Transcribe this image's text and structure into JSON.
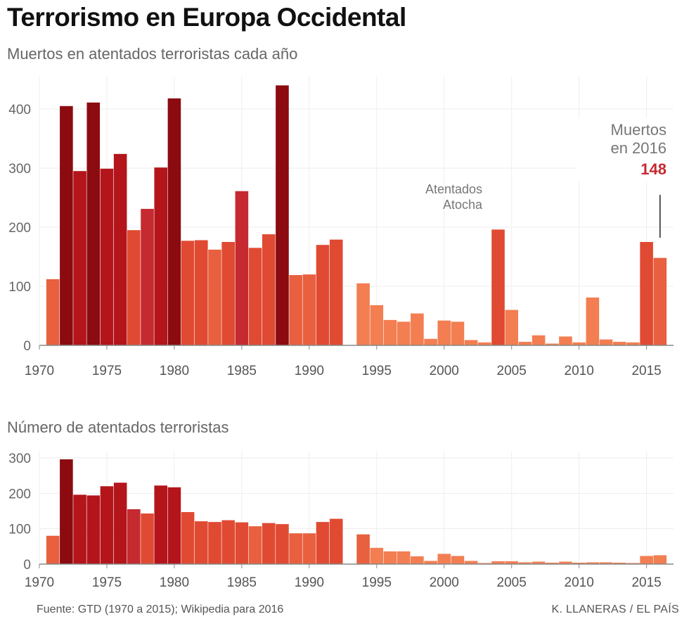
{
  "title": "Terrorismo en Europa Occidental",
  "chart_data": [
    {
      "type": "bar",
      "title": "Muertos en atentados terroristas cada año",
      "xlabel": "",
      "ylabel": "",
      "ylim": [
        0,
        450
      ],
      "yticks": [
        0,
        100,
        200,
        300,
        400
      ],
      "xticks": [
        1970,
        1975,
        1980,
        1985,
        1990,
        1995,
        2000,
        2005,
        2010,
        2015
      ],
      "x": [
        1971,
        1972,
        1973,
        1974,
        1975,
        1976,
        1977,
        1978,
        1979,
        1980,
        1981,
        1982,
        1983,
        1984,
        1985,
        1986,
        1987,
        1988,
        1989,
        1990,
        1991,
        1992,
        1994,
        1995,
        1996,
        1997,
        1998,
        1999,
        2000,
        2001,
        2002,
        2003,
        2004,
        2005,
        2006,
        2007,
        2008,
        2009,
        2010,
        2011,
        2012,
        2013,
        2014,
        2015,
        2016
      ],
      "values": [
        112,
        405,
        295,
        411,
        299,
        324,
        195,
        231,
        301,
        418,
        177,
        178,
        162,
        175,
        261,
        165,
        188,
        440,
        119,
        120,
        170,
        179,
        105,
        68,
        43,
        40,
        54,
        11,
        42,
        40,
        9,
        5,
        196,
        60,
        6,
        17,
        3,
        15,
        5,
        81,
        10,
        6,
        5,
        175,
        148
      ],
      "annotations": [
        {
          "text_line1": "Atentados",
          "text_line2": "Atocha",
          "x": 2004
        },
        {
          "text_line1": "Muertos",
          "text_line2": "en 2016",
          "value": "148",
          "x": 2016
        }
      ]
    },
    {
      "type": "bar",
      "title": "Número de atentados terroristas",
      "xlabel": "",
      "ylabel": "",
      "ylim": [
        0,
        310
      ],
      "yticks": [
        0,
        100,
        200,
        300
      ],
      "xticks": [
        1970,
        1975,
        1980,
        1985,
        1990,
        1995,
        2000,
        2005,
        2010,
        2015
      ],
      "x": [
        1971,
        1972,
        1973,
        1974,
        1975,
        1976,
        1977,
        1978,
        1979,
        1980,
        1981,
        1982,
        1983,
        1984,
        1985,
        1986,
        1987,
        1988,
        1989,
        1990,
        1991,
        1992,
        1994,
        1995,
        1996,
        1997,
        1998,
        1999,
        2000,
        2001,
        2002,
        2003,
        2004,
        2005,
        2006,
        2007,
        2008,
        2009,
        2010,
        2011,
        2012,
        2013,
        2014,
        2015,
        2016
      ],
      "values": [
        80,
        296,
        196,
        194,
        220,
        230,
        155,
        143,
        222,
        217,
        147,
        121,
        119,
        124,
        118,
        107,
        116,
        113,
        87,
        87,
        119,
        128,
        84,
        46,
        36,
        36,
        22,
        9,
        29,
        23,
        9,
        3,
        8,
        8,
        5,
        7,
        4,
        7,
        4,
        5,
        5,
        4,
        3,
        23,
        25
      ]
    }
  ],
  "footer": {
    "source": "Fuente: GTD (1970 a 2015); Wikipedia para 2016",
    "credit": "K. LLANERAS / EL PAÍS"
  },
  "colors": {
    "darkest": "#8b0b11",
    "dark": "#b3151b",
    "mid": "#c42a2f",
    "light": "#e04a32",
    "lighter": "#e8603f",
    "lightest": "#f27e52",
    "grid": "#eeeeee",
    "axis": "#888888"
  }
}
